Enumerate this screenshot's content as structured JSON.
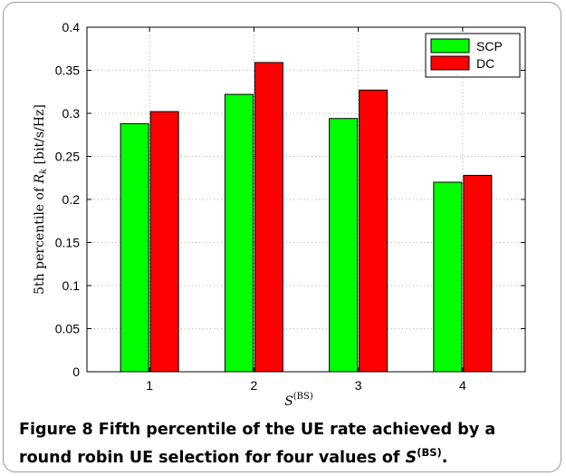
{
  "chart_data": {
    "type": "bar",
    "categories": [
      "1",
      "2",
      "3",
      "4"
    ],
    "series": [
      {
        "name": "SCP",
        "color": "#00ff00",
        "values": [
          0.288,
          0.322,
          0.294,
          0.22
        ]
      },
      {
        "name": "DC",
        "color": "#ff0000",
        "values": [
          0.302,
          0.359,
          0.327,
          0.228
        ]
      }
    ],
    "ylim": [
      0,
      0.4
    ],
    "yticks": [
      "0",
      "0.05",
      "0.1",
      "0.15",
      "0.2",
      "0.25",
      "0.3",
      "0.35",
      "0.4"
    ],
    "ylabel": "5th percentile of R̄_k [bit/s/Hz]",
    "ylabel_parts": {
      "prefix": "5th percentile of ",
      "symbol": "R",
      "sub": "k",
      "unit": " [bit/s/Hz]"
    },
    "xlabel": "S^(BS)",
    "xlabel_parts": {
      "symbol": "S",
      "sup": "(BS)"
    },
    "grid": true,
    "legend_position": "top-right"
  },
  "caption": {
    "label": "Figure 8",
    "text": " Fifth percentile of the UE rate achieved by a round robin UE selection for four values of ",
    "symbol": "S",
    "sup": "(BS)",
    "end": "."
  }
}
